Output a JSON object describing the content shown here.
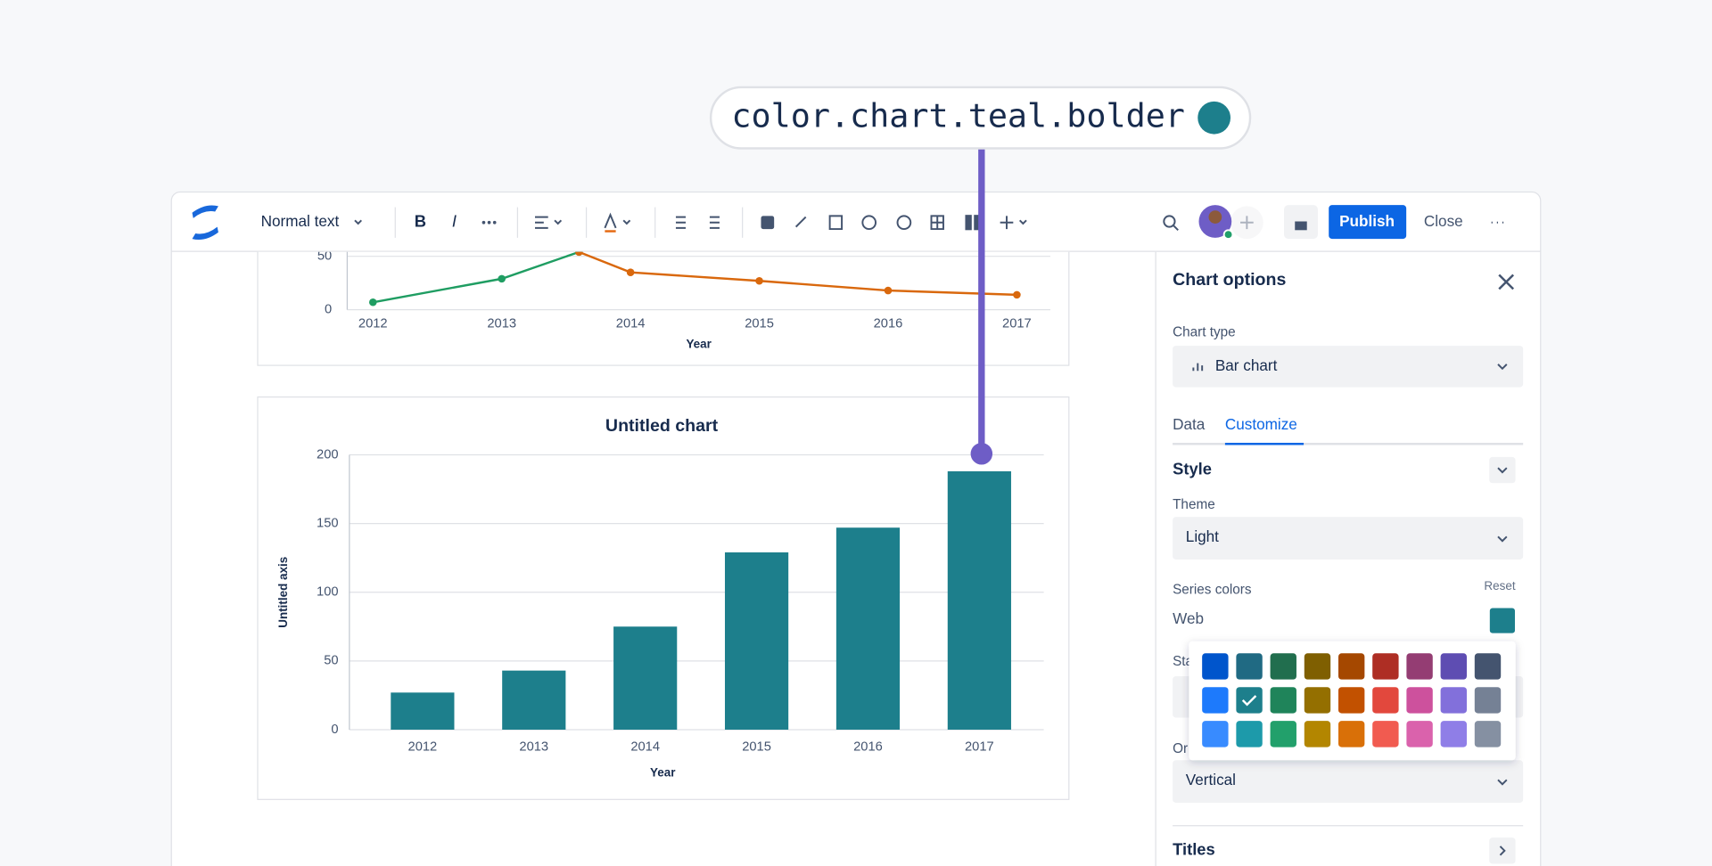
{
  "callout": {
    "token": "color.chart.teal.bolder",
    "color": "#1d7f8c"
  },
  "toolbar": {
    "style": "Normal text",
    "bold": "B",
    "italic": "I",
    "publish": "Publish",
    "close": "Close"
  },
  "chart_data": [
    {
      "type": "line",
      "x_label": "Year",
      "xlim": [
        2011.8,
        2017.26
      ],
      "xticks": [
        2012,
        2013,
        2014,
        2015,
        2016,
        2017
      ],
      "ylim": [
        0,
        50
      ],
      "yticks": [
        0,
        50
      ],
      "grid": true,
      "series": [
        {
          "color": "#1f9d62",
          "x": [
            2012,
            2013,
            2013.6
          ],
          "values": [
            7,
            29,
            54
          ]
        },
        {
          "color": "#d9680d",
          "x": [
            2013.6,
            2014,
            2015,
            2016,
            2017
          ],
          "values": [
            54,
            35,
            27,
            18,
            14
          ]
        }
      ]
    },
    {
      "type": "bar",
      "title": "Untitled chart",
      "y_label": "Untitled axis",
      "x_label": "Year",
      "categories": [
        "2012",
        "2013",
        "2014",
        "2015",
        "2016",
        "2017"
      ],
      "values": [
        27,
        43,
        75,
        129,
        147,
        188
      ],
      "color": "#1d7f8c",
      "ylim": [
        0,
        200
      ],
      "yticks": [
        0,
        50,
        100,
        150,
        200
      ],
      "grid": true
    }
  ],
  "panel": {
    "title": "Chart options",
    "chart_type_label": "Chart type",
    "chart_type": "Bar chart",
    "tabs": [
      "Data",
      "Customize"
    ],
    "style": "Style",
    "theme_label": "Theme",
    "theme": "Light",
    "series_colors": "Series colors",
    "reset": "Reset",
    "series_name": "Web",
    "series_color": "#1d7f8c",
    "hidden_label_1": "Sta",
    "hidden_label_2": "Or",
    "orientation": "Vertical",
    "titles": "Titles",
    "palette": [
      [
        "#0055cc",
        "#206a83",
        "#216e4e",
        "#7f5f01",
        "#a54800",
        "#ae2e24",
        "#943d73",
        "#5e4db2",
        "#44546f"
      ],
      [
        "#1d7afc",
        "#1d7f8c",
        "#1f845a",
        "#946f00",
        "#c25100",
        "#e2483d",
        "#cd519d",
        "#8270db",
        "#758195"
      ],
      [
        "#388bff",
        "#1d9aaa",
        "#22a06b",
        "#b38600",
        "#d97008",
        "#f15b50",
        "#da62ac",
        "#8f7ee7",
        "#8590a2"
      ]
    ]
  }
}
